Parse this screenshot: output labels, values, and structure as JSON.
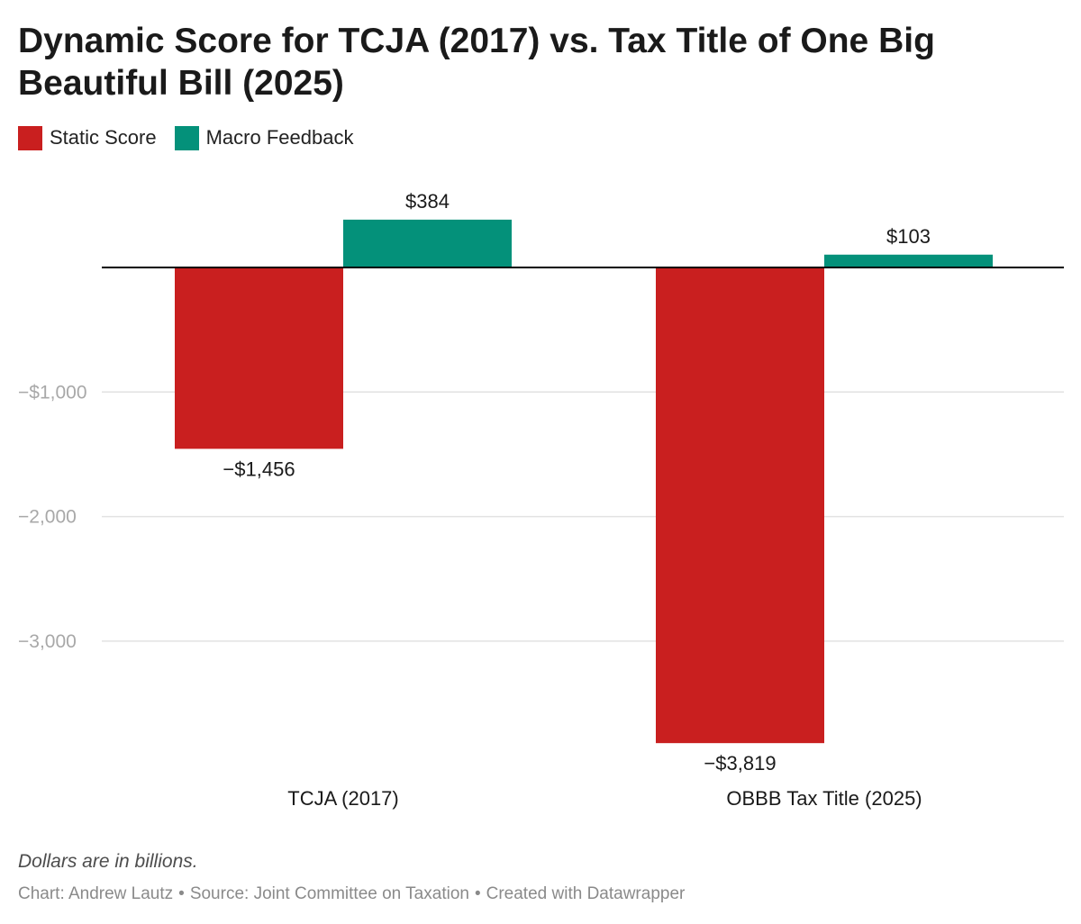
{
  "title": "Dynamic Score for TCJA (2017) vs. Tax Title of One Big Beautiful Bill (2025)",
  "colors": {
    "static": "#c91f1f",
    "macro": "#04917a",
    "axis": "#000000",
    "grid": "#e2e2e2",
    "tick": "#a8a8a8"
  },
  "chart_data": {
    "type": "bar",
    "title": "Dynamic Score for TCJA (2017) vs. Tax Title of One Big Beautiful Bill (2025)",
    "xlabel": "",
    "ylabel": "",
    "categories": [
      "TCJA (2017)",
      "OBBB Tax Title (2025)"
    ],
    "series": [
      {
        "name": "Static Score",
        "color": "#c91f1f",
        "values": [
          -1456,
          -3819
        ],
        "labels": [
          "−$1,456",
          "−$3,819"
        ]
      },
      {
        "name": "Macro Feedback",
        "color": "#04917a",
        "values": [
          384,
          103
        ],
        "labels": [
          "$384",
          "$103"
        ]
      }
    ],
    "ylim": [
      -3819,
      384
    ],
    "yticks": [
      {
        "value": -1000,
        "label": "−$1,000"
      },
      {
        "value": -2000,
        "label": "−2,000"
      },
      {
        "value": -3000,
        "label": "−3,000"
      }
    ],
    "grid": true,
    "legend_position": "top-left"
  },
  "footnote": "Dollars are in billions.",
  "credits": {
    "chart": "Chart: Andrew Lautz",
    "source": "Source: Joint Committee on Taxation",
    "tool": "Created with Datawrapper",
    "separator": "•"
  }
}
